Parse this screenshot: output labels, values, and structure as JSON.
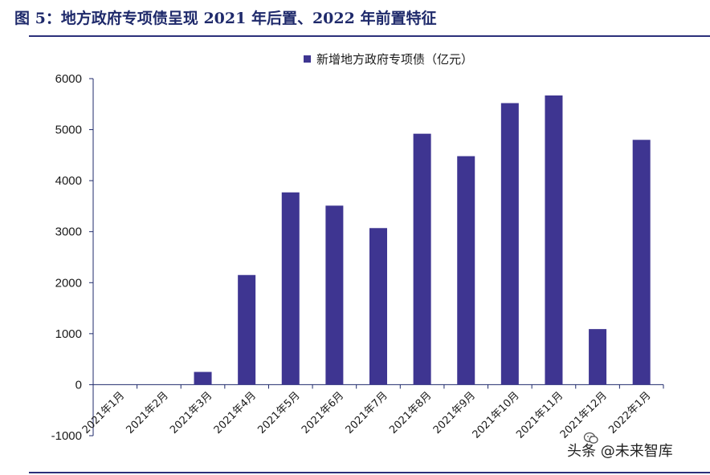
{
  "figure": {
    "title": "图 5：地方政府专项债呈现 2021 年后置、2022 年前置特征"
  },
  "watermark": {
    "text": "头条 @未来智库",
    "logo_icon": "wechat-like-icon"
  },
  "colors": {
    "bar": "#3e3591",
    "axis": "#1f2a6b",
    "rule": "#2b2f7a"
  },
  "chart_data": {
    "type": "bar",
    "categories": [
      "2021年1月",
      "2021年2月",
      "2021年3月",
      "2021年4月",
      "2021年5月",
      "2021年6月",
      "2021年7月",
      "2021年8月",
      "2021年9月",
      "2021年10月",
      "2021年11月",
      "2021年12月",
      "2022年1月"
    ],
    "series": [
      {
        "name": "新增地方政府专项债（亿元）",
        "values": [
          0,
          0,
          250,
          2150,
          3770,
          3510,
          3070,
          4920,
          4480,
          5520,
          5670,
          1090,
          4800
        ]
      }
    ],
    "ylim": [
      -1000,
      6000
    ],
    "yticks": [
      -1000,
      0,
      1000,
      2000,
      3000,
      4000,
      5000,
      6000
    ],
    "legend_position": "top",
    "grid": false,
    "xlabel": "",
    "ylabel": ""
  }
}
